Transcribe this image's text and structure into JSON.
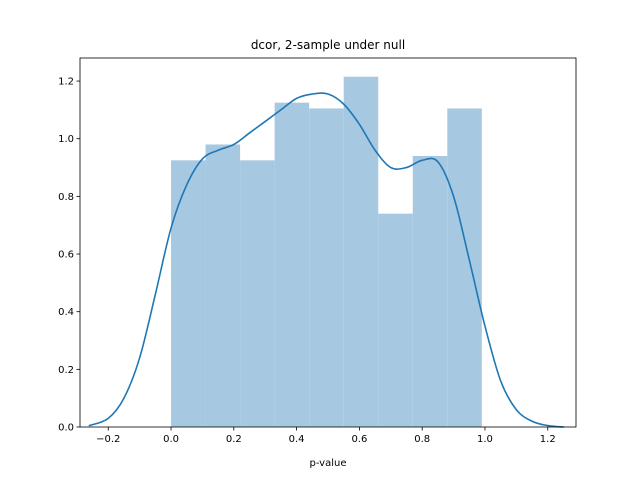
{
  "chart_data": {
    "type": "bar",
    "title": "dcor, 2-sample under null",
    "xlabel": "p-value",
    "ylabel": "",
    "xlim": [
      -0.29,
      1.29
    ],
    "ylim": [
      0,
      1.28
    ],
    "grid": false,
    "xticks": [
      -0.2,
      0.0,
      0.2,
      0.4,
      0.6,
      0.8,
      1.0,
      1.2
    ],
    "xtick_labels": [
      "−0.2",
      "0.0",
      "0.2",
      "0.4",
      "0.6",
      "0.8",
      "1.0",
      "1.2"
    ],
    "yticks": [
      0.0,
      0.2,
      0.4,
      0.6,
      0.8,
      1.0,
      1.2
    ],
    "ytick_labels": [
      "0.0",
      "0.2",
      "0.4",
      "0.6",
      "0.8",
      "1.0",
      "1.2"
    ],
    "histogram": {
      "bin_edges": [
        0.0,
        0.11,
        0.22,
        0.33,
        0.44,
        0.55,
        0.66,
        0.77,
        0.88,
        0.99
      ],
      "density": [
        0.925,
        0.98,
        0.925,
        1.125,
        1.105,
        1.215,
        0.74,
        0.94,
        1.105
      ],
      "color": "#a6c8e1"
    },
    "kde": {
      "color": "#1f77b4",
      "x": [
        -0.26,
        -0.2,
        -0.15,
        -0.1,
        -0.05,
        0.0,
        0.05,
        0.1,
        0.15,
        0.2,
        0.25,
        0.3,
        0.35,
        0.4,
        0.45,
        0.5,
        0.55,
        0.6,
        0.65,
        0.7,
        0.75,
        0.8,
        0.85,
        0.9,
        0.95,
        1.0,
        1.05,
        1.1,
        1.15,
        1.2,
        1.25
      ],
      "y": [
        0.005,
        0.03,
        0.1,
        0.24,
        0.46,
        0.69,
        0.84,
        0.93,
        0.96,
        0.98,
        1.02,
        1.06,
        1.1,
        1.14,
        1.155,
        1.155,
        1.12,
        1.05,
        0.96,
        0.9,
        0.9,
        0.925,
        0.92,
        0.8,
        0.58,
        0.35,
        0.16,
        0.06,
        0.02,
        0.005,
        0.0
      ]
    }
  }
}
